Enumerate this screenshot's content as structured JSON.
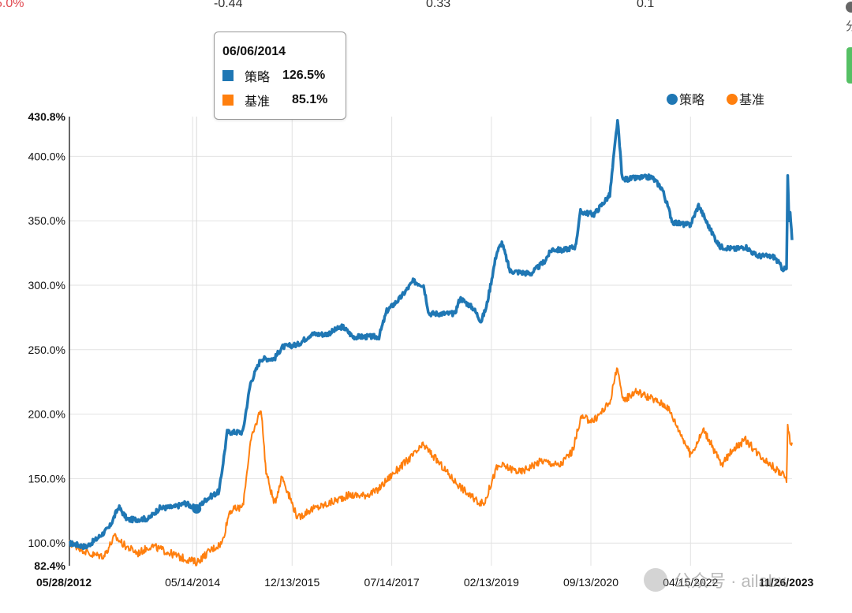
{
  "stats": [
    "5.0%",
    "-0.44",
    "0.33",
    "0.1"
  ],
  "tooltip": {
    "date": "06/06/2014",
    "rows": [
      {
        "name": "策略",
        "value": "126.5%",
        "color": "#1f77b4"
      },
      {
        "name": "基准",
        "value": "85.1%",
        "color": "#ff7f0e"
      }
    ]
  },
  "edge_text": "分",
  "watermark": "公众号 · ailabx",
  "chart_data": {
    "type": "line",
    "title": "",
    "xlabel": "",
    "ylabel": "",
    "x_ticks": [
      "05/28/2012",
      "05/14/2014",
      "12/13/2015",
      "07/14/2017",
      "02/13/2019",
      "09/13/2020",
      "04/15/2022",
      "11/26/2023"
    ],
    "y_ticks": [
      "82.4%",
      "100.0%",
      "150.0%",
      "200.0%",
      "250.0%",
      "300.0%",
      "350.0%",
      "400.0%",
      "430.8%"
    ],
    "ylim": [
      82.4,
      430.8
    ],
    "xlim": [
      "2012-05-28",
      "2023-11-26"
    ],
    "legend": {
      "position": "top-right"
    },
    "grid": true,
    "series": [
      {
        "name": "策略",
        "color": "#1f77b4",
        "points": [
          [
            "2012-05-28",
            100
          ],
          [
            "2012-09-01",
            97
          ],
          [
            "2012-11-01",
            103
          ],
          [
            "2013-01-15",
            112
          ],
          [
            "2013-03-10",
            128
          ],
          [
            "2013-05-01",
            118
          ],
          [
            "2013-09-01",
            119
          ],
          [
            "2013-11-01",
            127
          ],
          [
            "2014-02-01",
            128
          ],
          [
            "2014-04-01",
            131
          ],
          [
            "2014-06-06",
            126.5
          ],
          [
            "2014-08-01",
            134
          ],
          [
            "2014-10-15",
            140
          ],
          [
            "2014-12-01",
            186
          ],
          [
            "2015-03-01",
            186
          ],
          [
            "2015-04-15",
            224
          ],
          [
            "2015-06-15",
            243
          ],
          [
            "2015-09-01",
            243
          ],
          [
            "2015-10-15",
            252
          ],
          [
            "2016-01-15",
            254
          ],
          [
            "2016-04-01",
            262
          ],
          [
            "2016-07-01",
            262
          ],
          [
            "2016-10-01",
            268
          ],
          [
            "2016-12-01",
            260
          ],
          [
            "2017-03-01",
            260
          ],
          [
            "2017-05-01",
            260
          ],
          [
            "2017-06-15",
            280
          ],
          [
            "2017-09-01",
            290
          ],
          [
            "2017-11-15",
            303
          ],
          [
            "2018-01-15",
            300
          ],
          [
            "2018-02-15",
            278
          ],
          [
            "2018-07-15",
            278
          ],
          [
            "2018-08-15",
            290
          ],
          [
            "2018-11-01",
            282
          ],
          [
            "2018-12-15",
            272
          ],
          [
            "2019-01-15",
            283
          ],
          [
            "2019-03-15",
            325
          ],
          [
            "2019-04-15",
            333
          ],
          [
            "2019-06-01",
            311
          ],
          [
            "2019-10-01",
            309
          ],
          [
            "2019-12-15",
            318
          ],
          [
            "2020-02-01",
            328
          ],
          [
            "2020-04-01",
            327
          ],
          [
            "2020-06-15",
            330
          ],
          [
            "2020-07-15",
            357
          ],
          [
            "2020-10-01",
            355
          ],
          [
            "2021-01-01",
            370
          ],
          [
            "2021-02-15",
            428
          ],
          [
            "2021-03-15",
            382
          ],
          [
            "2021-06-01",
            383
          ],
          [
            "2021-09-01",
            384
          ],
          [
            "2021-11-01",
            375
          ],
          [
            "2022-01-01",
            349
          ],
          [
            "2022-03-15",
            347
          ],
          [
            "2022-04-15",
            347
          ],
          [
            "2022-06-01",
            362
          ],
          [
            "2022-08-01",
            345
          ],
          [
            "2022-10-01",
            330
          ],
          [
            "2023-01-01",
            328
          ],
          [
            "2023-03-01",
            330
          ],
          [
            "2023-05-01",
            323
          ],
          [
            "2023-08-15",
            322
          ],
          [
            "2023-10-01",
            313
          ],
          [
            "2023-10-25",
            312
          ],
          [
            "2023-11-01",
            385
          ],
          [
            "2023-11-08",
            350
          ],
          [
            "2023-11-15",
            355
          ],
          [
            "2023-11-26",
            335
          ]
        ]
      },
      {
        "name": "基准",
        "color": "#ff7f0e",
        "points": [
          [
            "2012-05-28",
            100
          ],
          [
            "2012-08-01",
            96
          ],
          [
            "2012-10-01",
            91
          ],
          [
            "2012-12-15",
            90
          ],
          [
            "2013-02-15",
            105
          ],
          [
            "2013-04-15",
            98
          ],
          [
            "2013-07-01",
            92
          ],
          [
            "2013-09-15",
            98
          ],
          [
            "2013-12-01",
            94
          ],
          [
            "2014-03-01",
            89
          ],
          [
            "2014-06-06",
            85.1
          ],
          [
            "2014-09-01",
            95
          ],
          [
            "2014-11-01",
            100
          ],
          [
            "2014-12-15",
            125
          ],
          [
            "2015-03-01",
            128
          ],
          [
            "2015-04-15",
            178
          ],
          [
            "2015-06-15",
            205
          ],
          [
            "2015-07-15",
            155
          ],
          [
            "2015-09-01",
            130
          ],
          [
            "2015-10-15",
            152
          ],
          [
            "2016-01-15",
            119
          ],
          [
            "2016-03-15",
            125
          ],
          [
            "2016-07-01",
            130
          ],
          [
            "2016-11-01",
            137
          ],
          [
            "2017-02-01",
            137
          ],
          [
            "2017-04-15",
            140
          ],
          [
            "2017-07-15",
            153
          ],
          [
            "2017-11-15",
            168
          ],
          [
            "2018-01-15",
            176
          ],
          [
            "2018-03-15",
            167
          ],
          [
            "2018-07-01",
            150
          ],
          [
            "2018-10-15",
            136
          ],
          [
            "2018-12-31",
            130
          ],
          [
            "2019-03-15",
            158
          ],
          [
            "2019-04-15",
            160
          ],
          [
            "2019-08-01",
            155
          ],
          [
            "2019-12-01",
            164
          ],
          [
            "2020-03-15",
            160
          ],
          [
            "2020-06-01",
            172
          ],
          [
            "2020-07-15",
            197
          ],
          [
            "2020-10-01",
            195
          ],
          [
            "2021-01-01",
            209
          ],
          [
            "2021-02-15",
            238
          ],
          [
            "2021-03-15",
            210
          ],
          [
            "2021-06-01",
            218
          ],
          [
            "2021-09-01",
            212
          ],
          [
            "2021-12-01",
            206
          ],
          [
            "2022-03-15",
            178
          ],
          [
            "2022-04-15",
            168
          ],
          [
            "2022-07-01",
            188
          ],
          [
            "2022-10-15",
            160
          ],
          [
            "2022-12-15",
            173
          ],
          [
            "2023-03-01",
            180
          ],
          [
            "2023-05-01",
            171
          ],
          [
            "2023-08-01",
            160
          ],
          [
            "2023-10-01",
            153
          ],
          [
            "2023-10-25",
            150
          ],
          [
            "2023-11-01",
            192
          ],
          [
            "2023-11-15",
            178
          ],
          [
            "2023-11-26",
            178
          ]
        ]
      }
    ]
  }
}
